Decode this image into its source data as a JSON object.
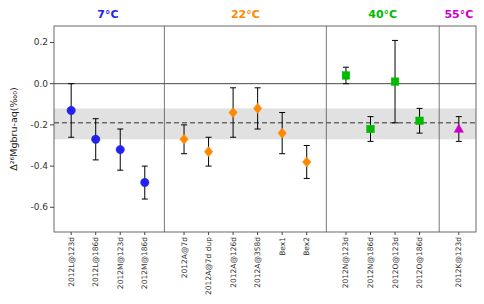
{
  "chart_data": {
    "type": "scatter",
    "y_label": "Δ²⁶Mgbru-aq(‰₀)",
    "categories": [
      "2012L@123d",
      "2012L@186d",
      "2012M@123d",
      "2012M@186d",
      "2012A@7d",
      "2012A@7d dup",
      "2012A@126d",
      "2012A@358d",
      "Bex1",
      "Bex2",
      "2012N@123d",
      "2012N@186d",
      "2012O@123d",
      "2012O@186d",
      "2012K@123d"
    ],
    "series": [
      {
        "name": "7°C",
        "color": "#2222ee",
        "marker": "circle",
        "values": [
          -0.13,
          -0.27,
          -0.32,
          -0.48,
          null,
          null,
          null,
          null,
          null,
          null,
          null,
          null,
          null,
          null,
          null
        ],
        "yerr_lo": [
          0.13,
          0.1,
          0.1,
          0.08,
          null,
          null,
          null,
          null,
          null,
          null,
          null,
          null,
          null,
          null,
          null
        ],
        "yerr_hi": [
          0.13,
          0.1,
          0.1,
          0.08,
          null,
          null,
          null,
          null,
          null,
          null,
          null,
          null,
          null,
          null,
          null
        ]
      },
      {
        "name": "22°C",
        "color": "#ff8800",
        "marker": "diamond",
        "values": [
          null,
          null,
          null,
          null,
          -0.27,
          -0.33,
          -0.14,
          -0.12,
          -0.24,
          -0.38,
          null,
          null,
          null,
          null,
          null
        ],
        "yerr_lo": [
          null,
          null,
          null,
          null,
          0.07,
          0.07,
          0.12,
          0.1,
          0.1,
          0.08,
          null,
          null,
          null,
          null,
          null
        ],
        "yerr_hi": [
          null,
          null,
          null,
          null,
          0.07,
          0.07,
          0.12,
          0.1,
          0.1,
          0.08,
          null,
          null,
          null,
          null,
          null
        ]
      },
      {
        "name": "40°C",
        "color": "#00bb00",
        "marker": "square",
        "values": [
          null,
          null,
          null,
          null,
          null,
          null,
          null,
          null,
          null,
          null,
          0.04,
          -0.22,
          0.01,
          -0.18,
          null
        ],
        "yerr_lo": [
          null,
          null,
          null,
          null,
          null,
          null,
          null,
          null,
          null,
          null,
          0.04,
          0.06,
          0.2,
          0.06,
          null
        ],
        "yerr_hi": [
          null,
          null,
          null,
          null,
          null,
          null,
          null,
          null,
          null,
          null,
          0.04,
          0.06,
          0.2,
          0.06,
          null
        ]
      },
      {
        "name": "55°C",
        "color": "#cc00cc",
        "marker": "triangle",
        "values": [
          null,
          null,
          null,
          null,
          null,
          null,
          null,
          null,
          null,
          null,
          null,
          null,
          null,
          null,
          -0.22
        ],
        "yerr_lo": [
          null,
          null,
          null,
          null,
          null,
          null,
          null,
          null,
          null,
          null,
          null,
          null,
          null,
          null,
          0.06
        ],
        "yerr_hi": [
          null,
          null,
          null,
          null,
          null,
          null,
          null,
          null,
          null,
          null,
          null,
          null,
          null,
          null,
          0.06
        ]
      }
    ],
    "band": [
      -0.27,
      -0.12
    ],
    "reference_lines": [
      {
        "value": -0.19,
        "line_style": "dashed"
      },
      {
        "value": 0,
        "line_style": "solid"
      }
    ],
    "ylim": [
      -0.72,
      0.28
    ],
    "yticks": [
      -0.6,
      -0.4,
      -0.2,
      {
        "value": 0.0,
        "label": "0.0"
      },
      0.2
    ],
    "grid": false
  }
}
